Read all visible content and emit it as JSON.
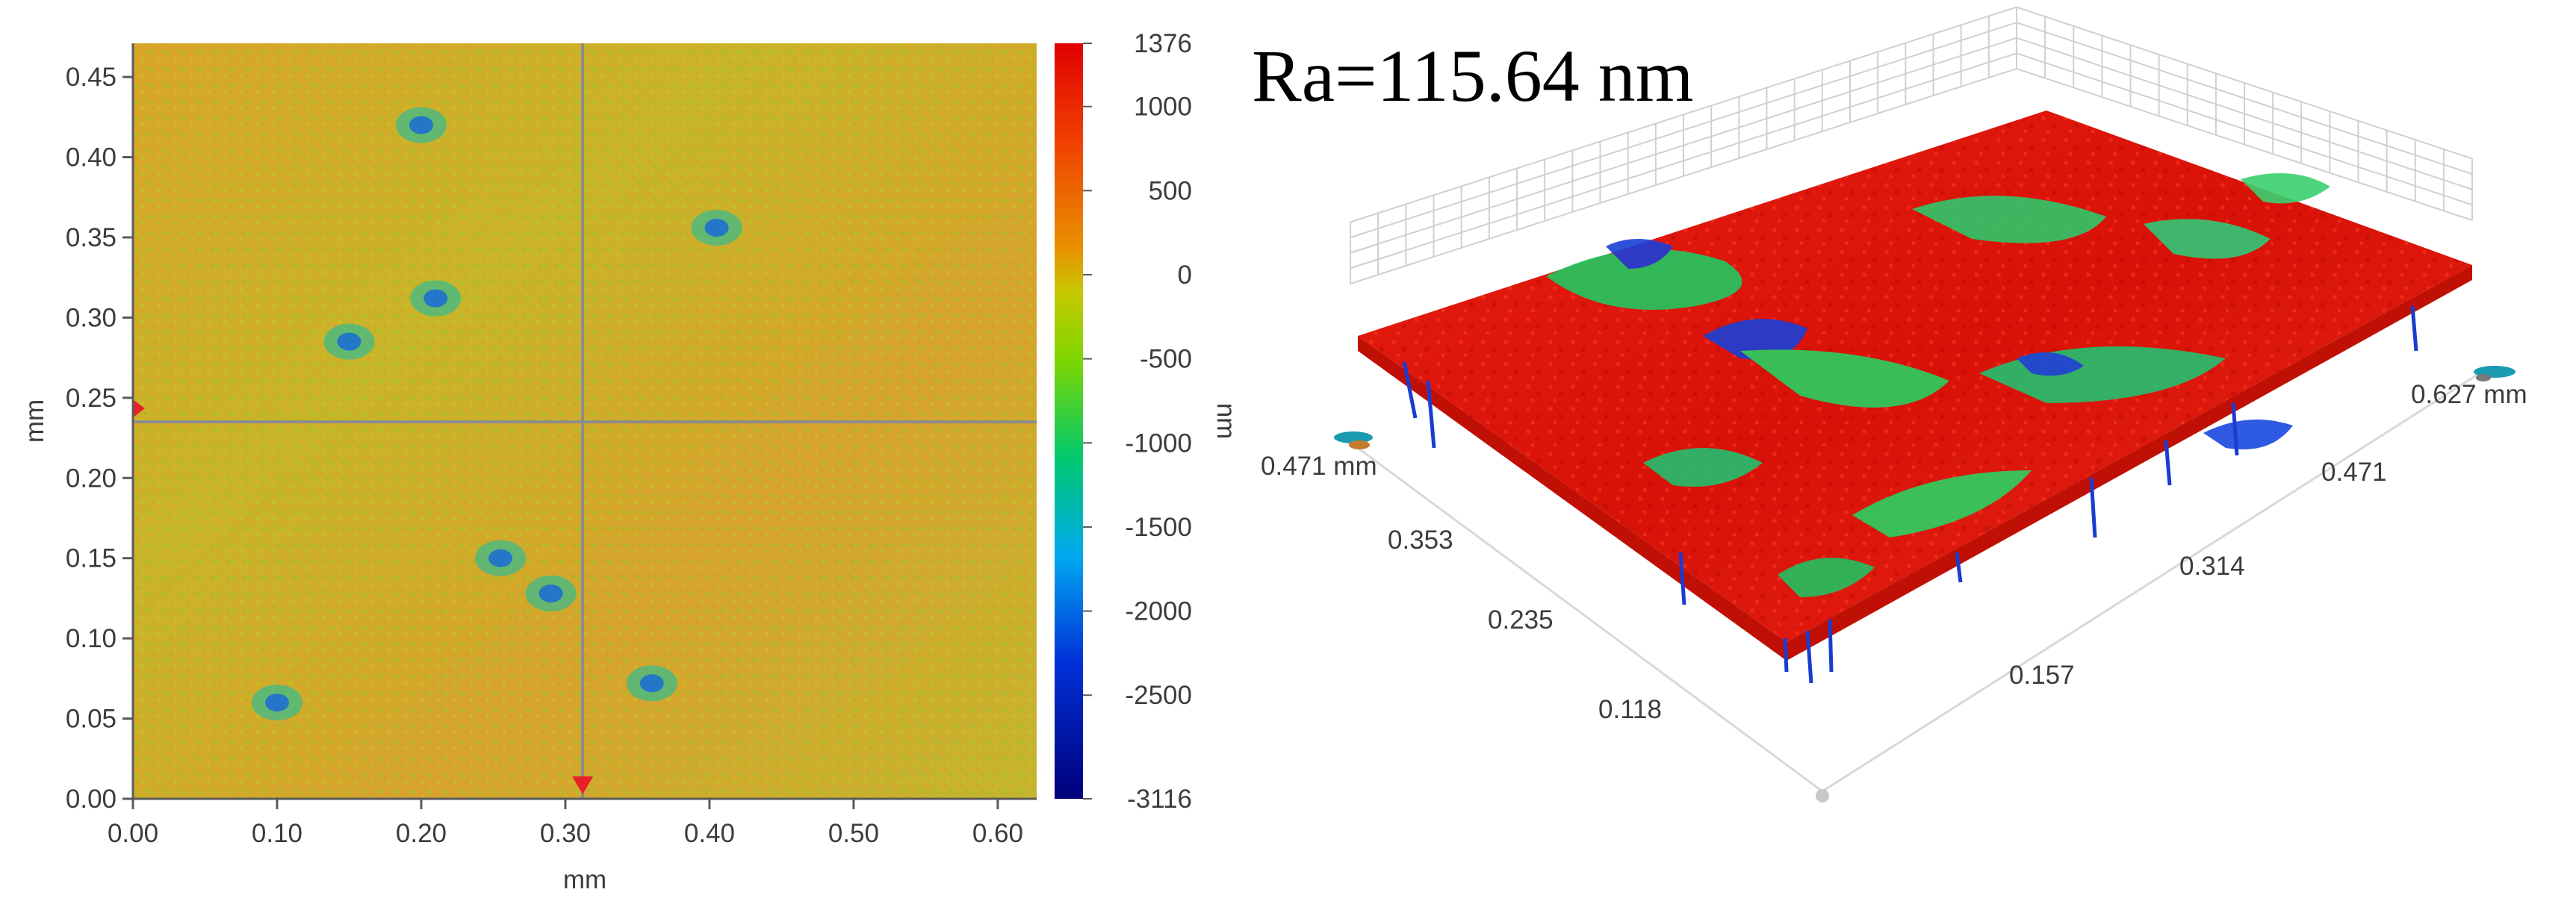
{
  "annotation": "Ra=115.64 nm",
  "chart_data": [
    {
      "type": "heatmap",
      "xlabel": "mm",
      "ylabel": "mm",
      "xlim": [
        0,
        0.627
      ],
      "ylim": [
        0,
        0.471
      ],
      "x_ticks": [
        "0.00",
        "0.10",
        "0.20",
        "0.30",
        "0.40",
        "0.50",
        "0.60"
      ],
      "y_ticks": [
        "0.00",
        "0.05",
        "0.10",
        "0.15",
        "0.20",
        "0.25",
        "0.30",
        "0.35",
        "0.40",
        "0.45"
      ],
      "crosshair": {
        "x": 0.312,
        "y": 0.235
      },
      "colorbar": {
        "label": "nm",
        "range": [
          -3116,
          1376
        ],
        "ticks": [
          "1376",
          "1000",
          "500",
          "0",
          "-500",
          "-1000",
          "-1500",
          "-2000",
          "-2500",
          "-3116"
        ],
        "colors": [
          "#00007a",
          "#0030d8",
          "#00a8f0",
          "#00c870",
          "#7cd600",
          "#c8c800",
          "#e89000",
          "#f04000",
          "#e00000"
        ]
      },
      "features": [
        {
          "x": 0.2,
          "y": 0.42,
          "kind": "pit"
        },
        {
          "x": 0.405,
          "y": 0.356,
          "kind": "pit"
        },
        {
          "x": 0.21,
          "y": 0.312,
          "kind": "pit"
        },
        {
          "x": 0.15,
          "y": 0.285,
          "kind": "pit"
        },
        {
          "x": 0.255,
          "y": 0.15,
          "kind": "pit"
        },
        {
          "x": 0.29,
          "y": 0.128,
          "kind": "pit"
        },
        {
          "x": 0.1,
          "y": 0.06,
          "kind": "pit"
        },
        {
          "x": 0.36,
          "y": 0.072,
          "kind": "pit"
        }
      ]
    },
    {
      "type": "surface",
      "axes": [
        {
          "end_label": "0.471 mm",
          "ticks": [
            "0.353",
            "0.235",
            "0.118"
          ]
        },
        {
          "end_label": "0.627 mm",
          "ticks": [
            "0.471",
            "0.314",
            "0.157"
          ]
        }
      ]
    }
  ]
}
